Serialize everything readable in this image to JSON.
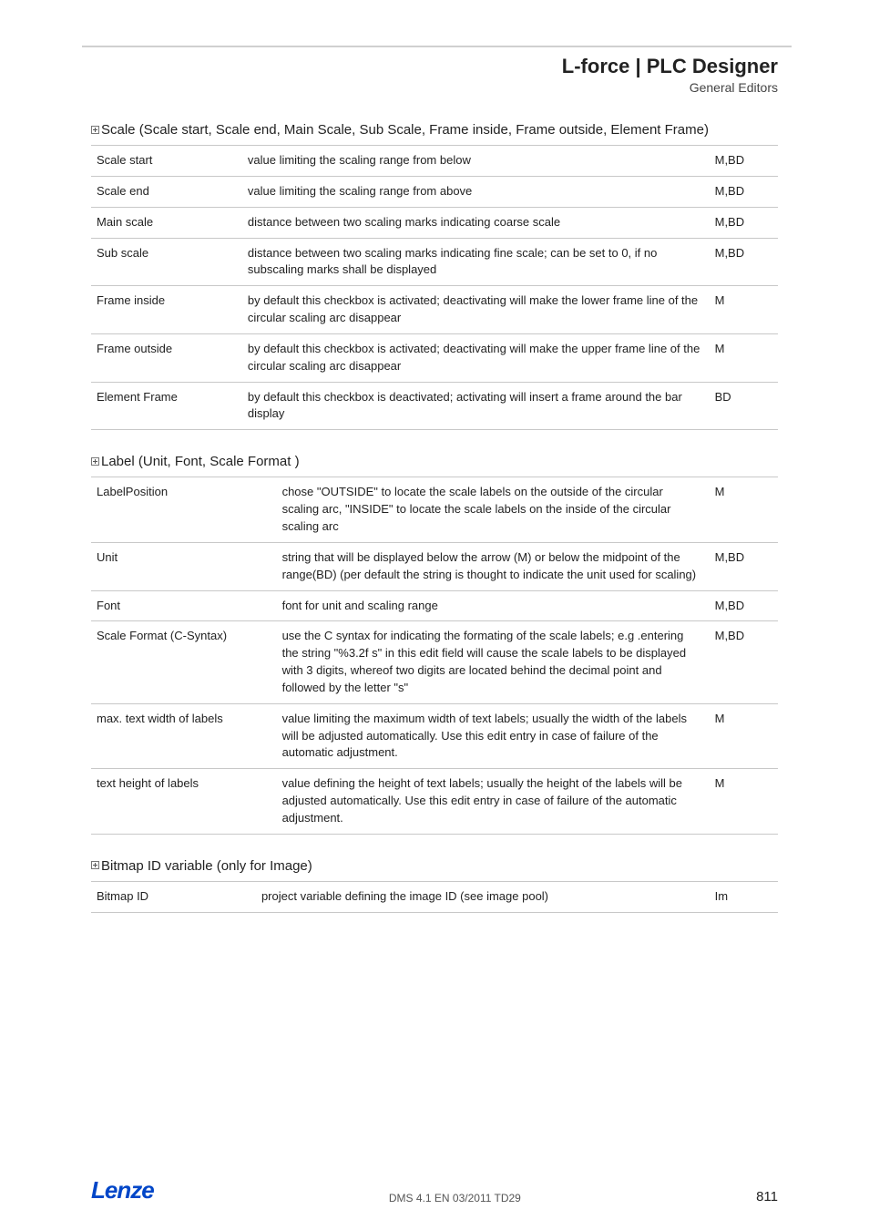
{
  "header": {
    "title": "L-force | PLC Designer",
    "subtitle": "General Editors"
  },
  "sections": [
    {
      "title": "Scale  (Scale start, Scale end, Main Scale, Sub Scale, Frame inside, Frame outside, Element Frame)",
      "table_class": "t1",
      "rows": [
        {
          "name": "Scale start",
          "desc": "value limiting the scaling range from below",
          "tag": "M,BD"
        },
        {
          "name": "Scale end",
          "desc": "value limiting the scaling range from above",
          "tag": "M,BD"
        },
        {
          "name": "Main scale",
          "desc": "distance between two scaling marks indicating coarse scale",
          "tag": "M,BD"
        },
        {
          "name": "Sub scale",
          "desc": "distance between two scaling marks indicating fine scale; can be set to 0, if no subscaling marks shall be displayed",
          "tag": "M,BD"
        },
        {
          "name": "Frame inside",
          "desc": "by default this checkbox is activated; deactivating will make the lower frame line of the circular scaling arc disappear",
          "tag": "M"
        },
        {
          "name": "Frame outside",
          "desc": "by default this checkbox is activated; deactivating will make the upper frame line of the circular scaling arc disappear",
          "tag": "M"
        },
        {
          "name": "Element Frame",
          "desc": "by default this checkbox is deactivated; activating will insert a frame around the bar display",
          "tag": "BD"
        }
      ]
    },
    {
      "title": "Label  (Unit, Font, Scale Format )",
      "table_class": "t2",
      "rows": [
        {
          "name": "LabelPosition",
          "desc": "chose \"OUTSIDE\" to locate the scale labels on the outside of the circular scaling arc, \"INSIDE\"  to locate the scale labels on the inside of the circular scaling arc",
          "tag": "M"
        },
        {
          "name": "Unit",
          "desc": "string that will be displayed below the arrow (M) or below the midpoint of the range(BD)  (per default the string is thought to indicate the unit used for scaling)",
          "tag": "M,BD"
        },
        {
          "name": "Font",
          "desc": "font for unit and scaling range",
          "tag": "M,BD"
        },
        {
          "name": "Scale Format (C-Syntax)",
          "desc": "use the C syntax for indicating the formating of the scale labels; e.g .entering the string \"%3.2f s\" in this edit field will cause the scale labels to be displayed with 3 digits, whereof  two digits are located behind the decimal point and followed by the letter \"s\"",
          "tag": "M,BD"
        },
        {
          "name": "max. text width of labels",
          "desc": "value limiting the maximum width of text labels; usually the width of the labels will be adjusted automatically. Use this edit entry in case of failure of the automatic adjustment.",
          "tag": "M"
        },
        {
          "name": "text height of labels",
          "desc": "value defining the height of text labels; usually the height of the labels will be adjusted automatically. Use this edit entry in case of failure of the automatic adjustment.",
          "tag": "M"
        }
      ]
    },
    {
      "title": "Bitmap ID variable  (only for Image)",
      "table_class": "t3",
      "rows": [
        {
          "name": "Bitmap ID",
          "desc": "project variable defining the image ID (see image pool)",
          "tag": "Im"
        }
      ]
    }
  ],
  "footer": {
    "logo": "Lenze",
    "center": "DMS 4.1 EN 03/2011 TD29",
    "page": "811"
  }
}
